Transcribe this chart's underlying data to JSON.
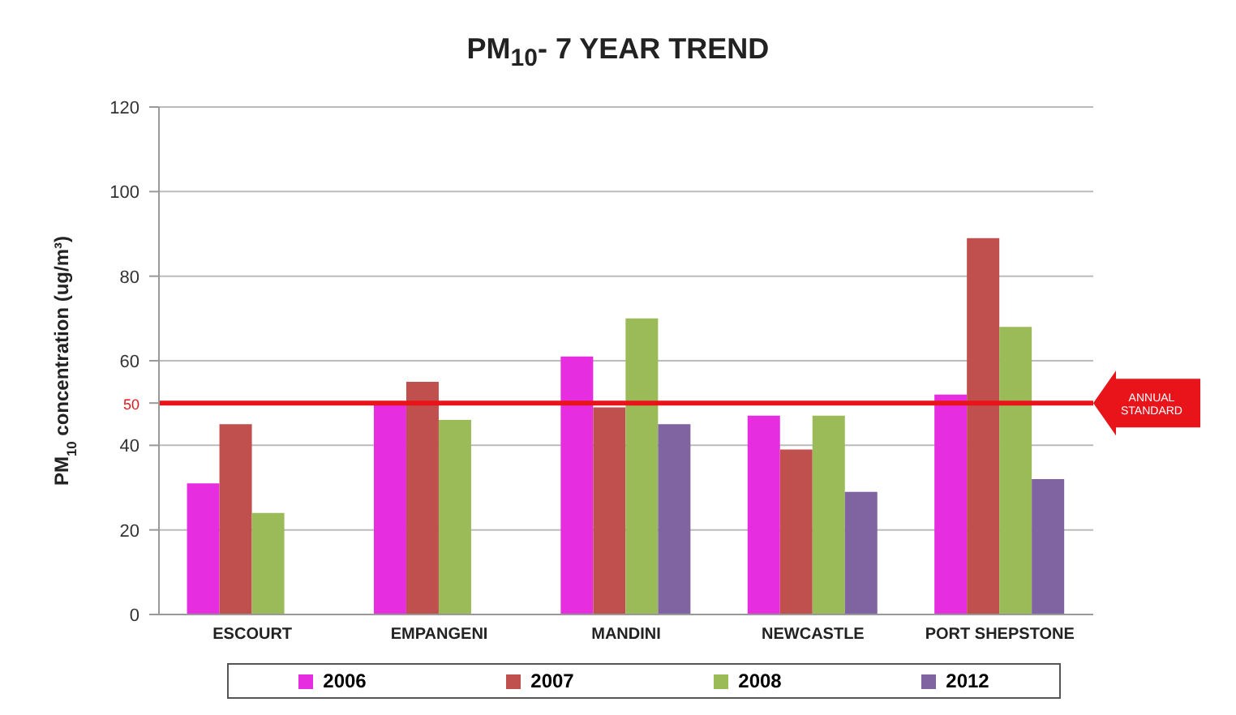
{
  "chart_data": {
    "type": "bar",
    "title": "PM$_{10}$- 7 YEAR TREND",
    "ylabel": "PM$_{10}$ concentration  (ug/m³)",
    "categories": [
      "ESCOURT",
      "EMPANGENI",
      "MANDINI",
      "NEWCASTLE",
      "PORT SHEPSTONE"
    ],
    "series": [
      {
        "name": "2006",
        "color": "#e62ee0",
        "values": [
          31,
          50,
          61,
          47,
          52
        ]
      },
      {
        "name": "2007",
        "color": "#c0504d",
        "values": [
          45,
          55,
          49,
          39,
          89
        ]
      },
      {
        "name": "2008",
        "color": "#9bbb59",
        "values": [
          24,
          46,
          70,
          47,
          68
        ]
      },
      {
        "name": "2012",
        "color": "#8064a2",
        "values": [
          null,
          null,
          45,
          29,
          32
        ]
      }
    ],
    "ylim": [
      0,
      120
    ],
    "yticks": [
      0,
      20,
      40,
      {
        "value": 50,
        "label": "50"
      },
      60,
      80,
      100,
      120
    ],
    "ref_lines": [
      {
        "axis": "y",
        "value": 50,
        "label": "ANNUAL STANDARD",
        "color": "#e8141a"
      }
    ],
    "grid": "y",
    "legend": "bottom"
  }
}
